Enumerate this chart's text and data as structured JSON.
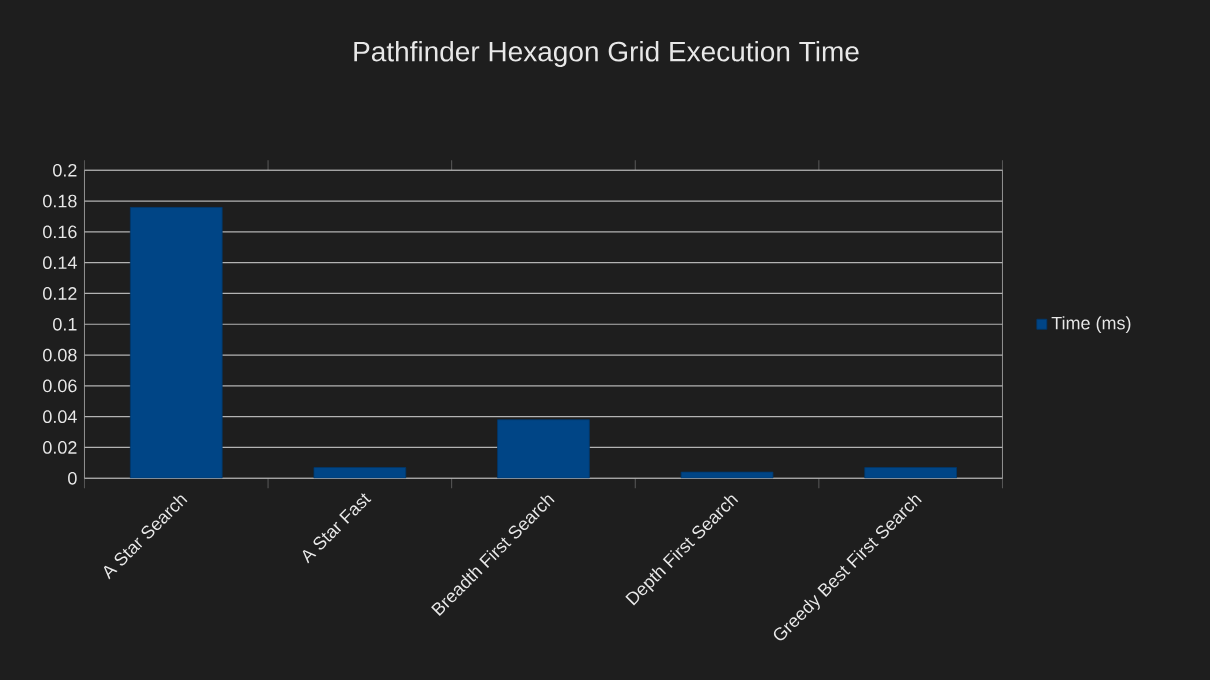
{
  "chart_data": {
    "type": "bar",
    "title": "Pathfinder Hexagon Grid Execution Time",
    "categories": [
      "A Star Search",
      "A Star Fast",
      "Breadth First Search",
      "Depth First Search",
      "Greedy Best First Search"
    ],
    "series": [
      {
        "name": "Time (ms)",
        "color": "#004586",
        "values": [
          0.176,
          0.007,
          0.038,
          0.004,
          0.007
        ]
      }
    ],
    "ylim": [
      0,
      0.2
    ],
    "yticks": [
      0,
      0.02,
      0.04,
      0.06,
      0.08,
      0.1,
      0.12,
      0.14,
      0.16,
      0.18,
      0.2
    ],
    "grid": "y",
    "legend": "right"
  }
}
